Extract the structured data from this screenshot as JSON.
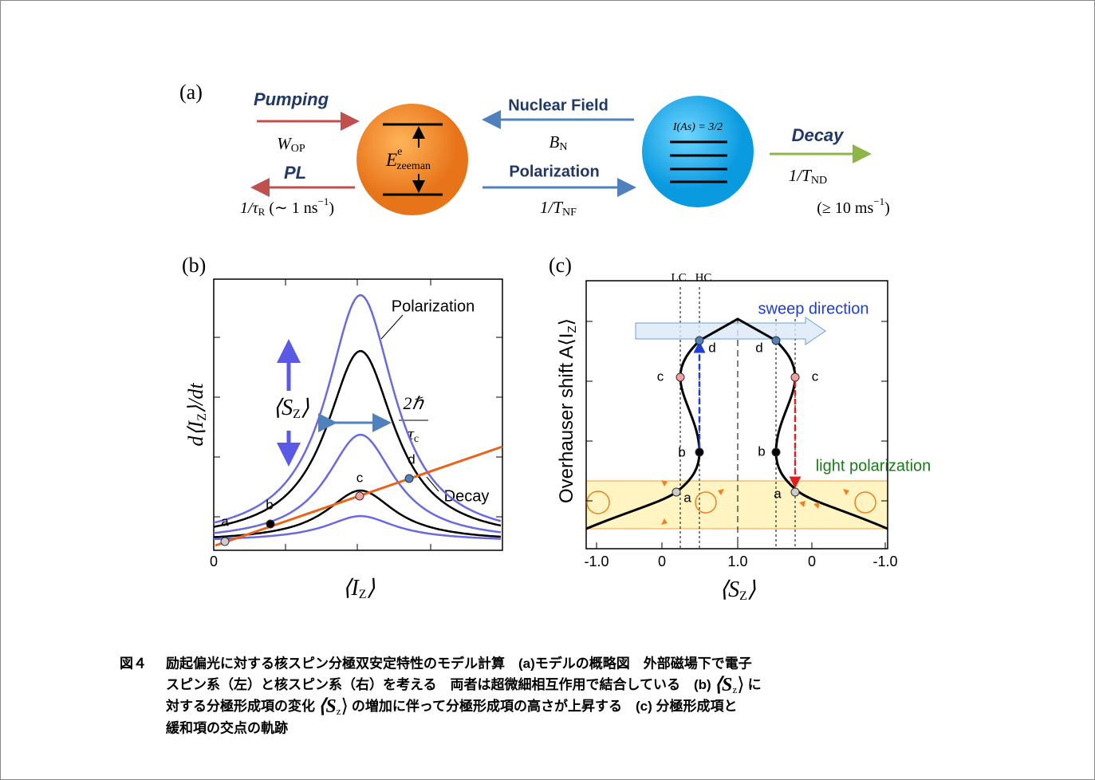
{
  "panel_a": {
    "label": "(a)",
    "pumping": "Pumping",
    "w": "W",
    "w_sub": "OP",
    "pl": "PL",
    "rate_r_pre": "1/τ",
    "rate_r_sub": "R",
    "rate_r_post": " (∼ 1 ns",
    "rate_r_exp": "−1",
    "rate_r_close": ")",
    "e": "E",
    "e_sup": "e",
    "e_sub": "zeeman",
    "nuclear_field": "Nuclear Field",
    "b": "B",
    "b_sub": "N",
    "polarization": "Polarization",
    "tnf": "1/T",
    "tnf_sub": "NF",
    "nucleus": "I(As) = 3/2",
    "decay": "Decay",
    "tnd": "1/T",
    "tnd_sub": "ND",
    "decay_rate": "(≥ 10 ms",
    "decay_rate_exp": "−1",
    "decay_rate_close": ")"
  },
  "panel_b": {
    "label": "(b)",
    "y_label": "d⟨I",
    "y_label_sub": "Z",
    "y_label_post": "⟩/dt",
    "x_label": "⟨I",
    "x_label_sub": "Z",
    "x_label_post": "⟩",
    "x_origin": "0",
    "polarization": "Polarization",
    "decay": "Decay",
    "sz": "⟨S",
    "sz_sub": "Z",
    "sz_post": "⟩",
    "width_num": "2ℏ",
    "width_den": "τ",
    "width_den_sub": "c",
    "points": [
      "a",
      "b",
      "c",
      "d"
    ]
  },
  "panel_c": {
    "label": "(c)",
    "lc": "LC",
    "hc": "HC",
    "y_label": "Overhauser shift A⟨I",
    "y_label_sub": "Z",
    "y_label_post": "⟩",
    "x_label": "⟨S",
    "x_label_sub": "Z",
    "x_label_post": "⟩",
    "x_tick_labels": [
      "-1.0",
      "0",
      "1.0",
      "0",
      "-1.0"
    ],
    "sweep": "sweep direction",
    "light": "light polarization",
    "left_points": [
      "a",
      "b",
      "c",
      "d"
    ],
    "right_points": [
      "a",
      "b",
      "c",
      "d"
    ]
  },
  "caption": {
    "label": "図４",
    "line1": "励起偏光に対する核スピン分極双安定特性のモデル計算　(a)モデルの概略図　外部磁場下で電子",
    "line2": "スピン系（左）と核スピン系（右）を考える　両者は超微細相互作用で結合している　(b)",
    "sz1": "⟨S",
    "sz1_sub": "z",
    "sz1_post": "⟩",
    "line2_end": "に",
    "line3": "対する分極形成項の変化",
    "sz2": "⟨S",
    "sz2_sub": "z",
    "sz2_post": "⟩",
    "line3_end": "の増加に伴って分極形成項の高さが上昇する　(c) 分極形成項と",
    "line4": "緩和項の交点の軌跡"
  }
}
